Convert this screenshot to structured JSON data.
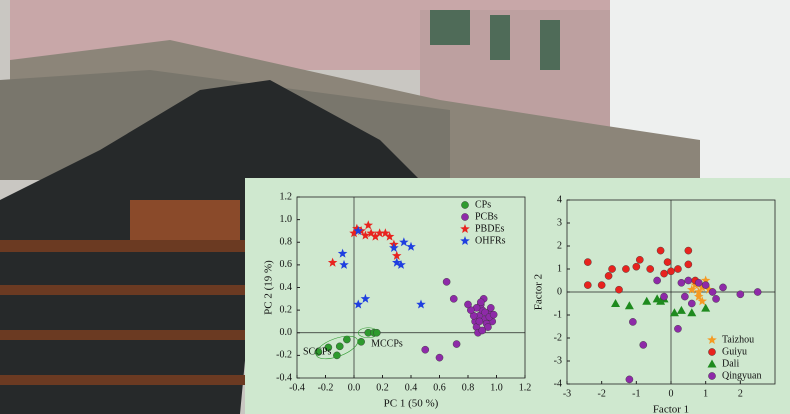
{
  "chart_data": [
    {
      "type": "scatter",
      "x_label": "PC 1 (50 %)",
      "y_label": "PC 2 (19 %)",
      "xlim": [
        -0.4,
        1.2
      ],
      "ylim": [
        -0.4,
        1.2
      ],
      "xticks": [
        -0.4,
        -0.2,
        {
          "value": 0,
          "label": "0.0"
        },
        0.2,
        0.4,
        0.6,
        0.8,
        {
          "value": 1,
          "label": "1.0"
        },
        1.2
      ],
      "yticks": [
        -0.4,
        -0.2,
        {
          "value": 0,
          "label": "0.0"
        },
        0.2,
        0.4,
        0.6,
        0.8,
        {
          "value": 1,
          "label": "1.0"
        },
        1.2
      ],
      "zero_lines": true,
      "legend": "top-right",
      "annotations": [
        "SCCPs",
        "MCCPs"
      ],
      "series": [
        {
          "name": "CPs",
          "color": "#2e9a2e",
          "marker": "circle",
          "x": [
            -0.25,
            -0.18,
            -0.1,
            -0.05,
            0.05,
            0.1,
            0.14,
            0.16,
            -0.12
          ],
          "y": [
            -0.17,
            -0.13,
            -0.12,
            -0.06,
            -0.08,
            0.0,
            0.0,
            0.0,
            -0.2
          ]
        },
        {
          "name": "PCBs",
          "color": "#8e2aa8",
          "marker": "circle",
          "x": [
            0.85,
            0.88,
            0.9,
            0.92,
            0.95,
            0.97,
            0.86,
            0.89,
            0.93,
            0.96,
            0.84,
            0.87,
            0.91,
            0.94,
            0.88,
            0.9,
            0.92,
            0.86,
            0.95,
            0.89,
            0.82,
            0.98,
            0.7,
            0.65,
            0.5,
            0.6,
            0.72,
            0.8
          ],
          "y": [
            0.1,
            0.15,
            0.2,
            0.12,
            0.18,
            0.1,
            0.05,
            0.25,
            0.08,
            0.22,
            0.15,
            0.0,
            0.3,
            0.05,
            0.1,
            0.02,
            0.18,
            0.22,
            0.14,
            0.27,
            0.2,
            0.16,
            0.3,
            0.45,
            -0.15,
            -0.22,
            -0.1,
            0.25
          ]
        },
        {
          "name": "PBDEs",
          "color": "#e8231e",
          "marker": "star",
          "x": [
            -0.15,
            0.0,
            0.05,
            0.1,
            0.12,
            0.15,
            0.18,
            0.22,
            0.25,
            0.28,
            0.3,
            0.08,
            0.02
          ],
          "y": [
            0.62,
            0.88,
            0.9,
            0.95,
            0.88,
            0.85,
            0.88,
            0.88,
            0.85,
            0.78,
            0.68,
            0.86,
            0.92
          ]
        },
        {
          "name": "OHFRs",
          "color": "#1f3fe0",
          "marker": "star",
          "x": [
            -0.08,
            -0.07,
            0.03,
            0.03,
            0.08,
            0.3,
            0.33,
            0.35,
            0.4,
            0.47,
            0.28
          ],
          "y": [
            0.7,
            0.6,
            0.9,
            0.25,
            0.3,
            0.62,
            0.6,
            0.8,
            0.76,
            0.25,
            0.75
          ]
        }
      ]
    },
    {
      "type": "scatter",
      "x_label": "Factor 1",
      "y_label": "Factor 2",
      "xlim": [
        -3,
        3
      ],
      "ylim": [
        -4,
        4
      ],
      "xticks": [
        -3,
        -2,
        -1,
        0,
        1,
        2
      ],
      "yticks": [
        -4,
        -3,
        -2,
        -1,
        0,
        1,
        2,
        3,
        4
      ],
      "zero_lines": true,
      "legend": "bottom-right",
      "series": [
        {
          "name": "Taizhou",
          "color": "#f59a23",
          "marker": "star",
          "x": [
            0.6,
            0.7,
            0.8,
            0.9,
            1.0,
            0.8,
            1.1,
            0.9
          ],
          "y": [
            0.1,
            0.3,
            0.0,
            0.2,
            0.5,
            -0.2,
            0.1,
            -0.4
          ]
        },
        {
          "name": "Guiyu",
          "color": "#e8231e",
          "marker": "circle",
          "x": [
            -2.4,
            -2.4,
            -1.8,
            -1.7,
            -1.3,
            -1.0,
            -0.9,
            -0.3,
            -0.1,
            0.2,
            0.5,
            0.5,
            -1.5,
            -0.6,
            -0.2,
            0.0,
            -2.0,
            0.7
          ],
          "y": [
            1.3,
            0.3,
            0.7,
            1.0,
            1.0,
            1.1,
            1.4,
            1.8,
            1.3,
            1.0,
            1.8,
            1.2,
            0.1,
            1.0,
            0.8,
            0.9,
            0.3,
            0.5
          ]
        },
        {
          "name": "Dali",
          "color": "#1e8a1e",
          "marker": "triangle",
          "x": [
            -1.6,
            -1.2,
            -0.7,
            -0.4,
            -0.3,
            -0.2,
            0.1,
            0.3,
            0.6,
            1.0
          ],
          "y": [
            -0.5,
            -0.6,
            -0.4,
            -0.3,
            -0.4,
            -0.3,
            -0.9,
            -0.8,
            -0.9,
            -0.7
          ]
        },
        {
          "name": "Qingyuan",
          "color": "#8e2aa8",
          "marker": "circle",
          "x": [
            -1.2,
            -1.1,
            -0.8,
            -0.2,
            0.2,
            0.4,
            0.5,
            0.6,
            0.8,
            1.0,
            1.2,
            1.3,
            1.5,
            2.0,
            2.5,
            0.3,
            -0.4
          ],
          "y": [
            -3.8,
            -1.3,
            -2.3,
            -0.2,
            -1.6,
            -0.2,
            0.5,
            -0.5,
            0.4,
            0.3,
            0.0,
            -0.3,
            0.2,
            -0.1,
            0.0,
            0.4,
            0.5
          ]
        }
      ]
    }
  ]
}
